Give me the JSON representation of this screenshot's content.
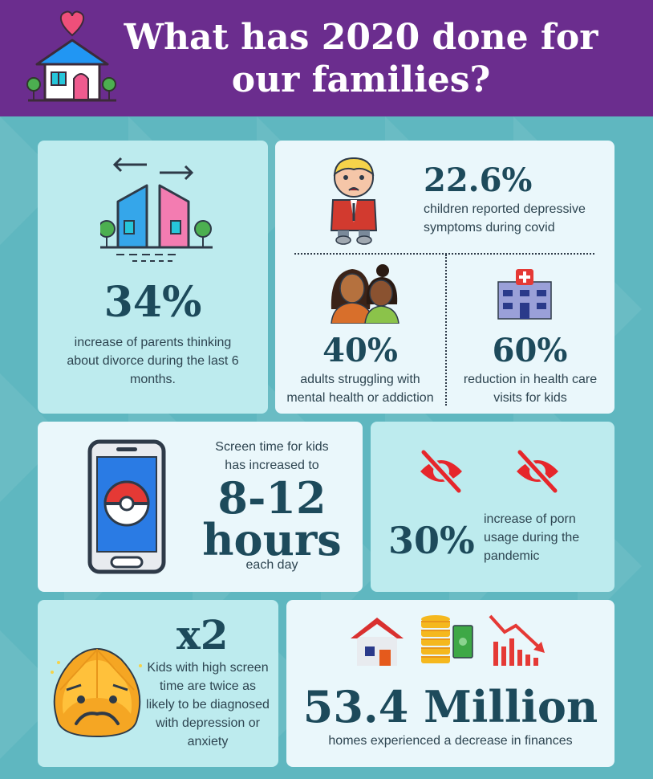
{
  "header": {
    "title_line1": "What has 2020 done for",
    "title_line2": "our families?",
    "logo_icon": "house-heart-icon"
  },
  "colors": {
    "header_bg": "#6b2d8e",
    "page_bg": "#5fb7c0",
    "card_light": "#eaf7fb",
    "card_teal": "#bdebee",
    "stat_text": "#1d4a5b",
    "accent_red": "#e6262b"
  },
  "stats": {
    "divorce": {
      "value": "34%",
      "text": "increase of parents thinking about divorce during the last 6 months.",
      "icon": "divided-houses-icon"
    },
    "depression": {
      "value": "22.6%",
      "text": "children reported depressive symptoms during covid",
      "icon": "sad-boy-icon"
    },
    "mental_health": {
      "value": "40%",
      "text": "adults struggling with mental health or addiction",
      "icon": "two-women-icon"
    },
    "health_care": {
      "value": "60%",
      "text": "reduction in health care visits for kids",
      "icon": "hospital-icon"
    },
    "screen_time": {
      "intro": "Screen time for kids has increased to",
      "value_line1": "8-12",
      "value_line2": "hours",
      "suffix": "each day",
      "icon": "smartphone-pokeball-icon"
    },
    "porn": {
      "value": "30%",
      "text": "increase of porn usage during the pandemic",
      "icon": "crossed-eye-icon"
    },
    "double": {
      "value": "x2",
      "text": "Kids with high screen time are twice as likely to be diagnosed with depression or anxiety",
      "icon": "worried-face-icon"
    },
    "finances": {
      "value": "53.4 Million",
      "text": "homes experienced a decrease in finances",
      "icons": [
        "house-icon",
        "coins-money-icon",
        "declining-chart-icon"
      ]
    }
  }
}
